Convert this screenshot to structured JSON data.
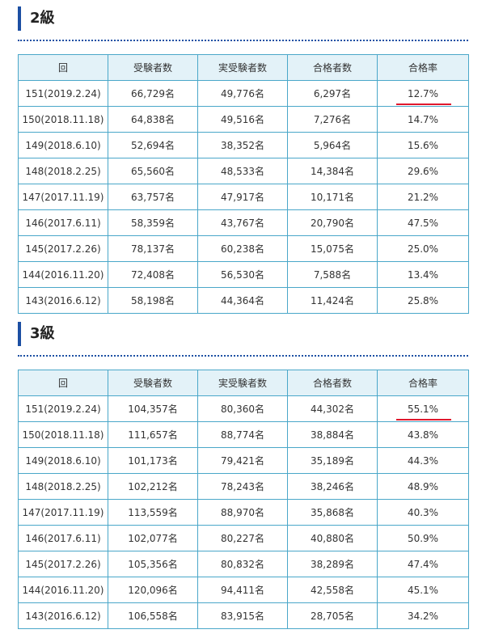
{
  "sections": [
    {
      "title": "2級",
      "headers": [
        "回",
        "受験者数",
        "実受験者数",
        "合格者数",
        "合格率"
      ],
      "rows": [
        [
          "151(2019.2.24)",
          "66,729名",
          "49,776名",
          "6,297名",
          "12.7%"
        ],
        [
          "150(2018.11.18)",
          "64,838名",
          "49,516名",
          "7,276名",
          "14.7%"
        ],
        [
          "149(2018.6.10)",
          "52,694名",
          "38,352名",
          "5,964名",
          "15.6%"
        ],
        [
          "148(2018.2.25)",
          "65,560名",
          "48,533名",
          "14,384名",
          "29.6%"
        ],
        [
          "147(2017.11.19)",
          "63,757名",
          "47,917名",
          "10,171名",
          "21.2%"
        ],
        [
          "146(2017.6.11)",
          "58,359名",
          "43,767名",
          "20,790名",
          "47.5%"
        ],
        [
          "145(2017.2.26)",
          "78,137名",
          "60,238名",
          "15,075名",
          "25.0%"
        ],
        [
          "144(2016.11.20)",
          "72,408名",
          "56,530名",
          "7,588名",
          "13.4%"
        ],
        [
          "143(2016.6.12)",
          "58,198名",
          "44,364名",
          "11,424名",
          "25.8%"
        ]
      ]
    },
    {
      "title": "3級",
      "headers": [
        "回",
        "受験者数",
        "実受験者数",
        "合格者数",
        "合格率"
      ],
      "rows": [
        [
          "151(2019.2.24)",
          "104,357名",
          "80,360名",
          "44,302名",
          "55.1%"
        ],
        [
          "150(2018.11.18)",
          "111,657名",
          "88,774名",
          "38,884名",
          "43.8%"
        ],
        [
          "149(2018.6.10)",
          "101,173名",
          "79,421名",
          "35,189名",
          "44.3%"
        ],
        [
          "148(2018.2.25)",
          "102,212名",
          "78,243名",
          "38,246名",
          "48.9%"
        ],
        [
          "147(2017.11.19)",
          "113,559名",
          "88,970名",
          "35,868名",
          "40.3%"
        ],
        [
          "146(2017.6.11)",
          "102,077名",
          "80,227名",
          "40,880名",
          "50.9%"
        ],
        [
          "145(2017.2.26)",
          "105,356名",
          "80,832名",
          "38,289名",
          "47.4%"
        ],
        [
          "144(2016.11.20)",
          "120,096名",
          "94,411名",
          "42,558名",
          "45.1%"
        ],
        [
          "143(2016.6.12)",
          "106,558名",
          "83,915名",
          "28,705名",
          "34.2%"
        ]
      ]
    }
  ],
  "colors": {
    "accent": "#1c4fa3",
    "table_border": "#4aa7c9",
    "header_bg": "#e3f2f8",
    "underline": "#e0182d"
  }
}
